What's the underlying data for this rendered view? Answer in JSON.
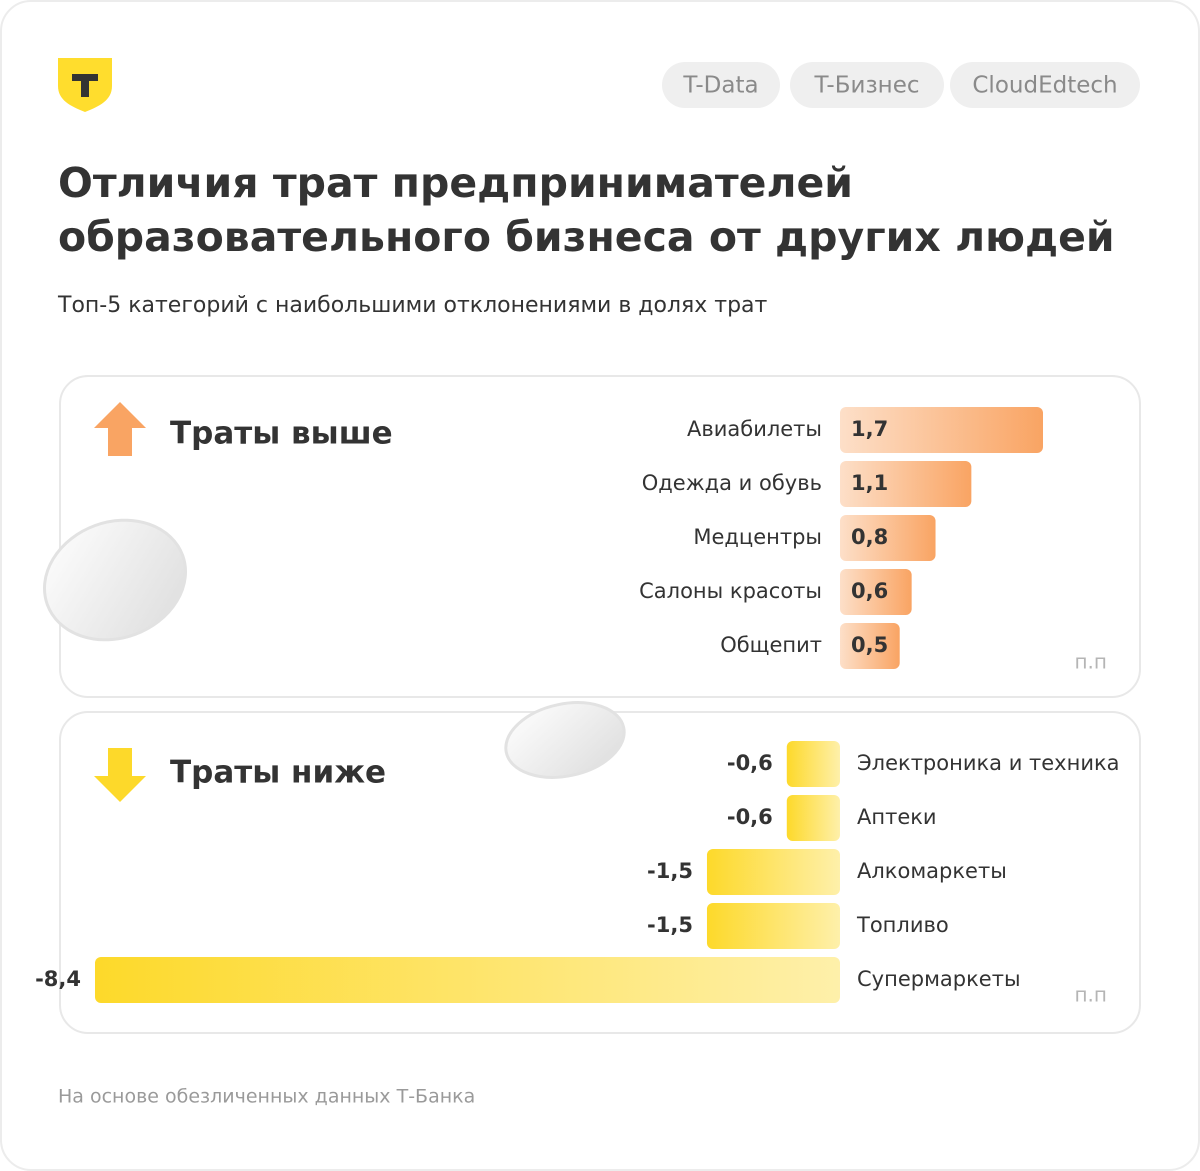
{
  "header": {
    "tags": [
      "T-Data",
      "T-Бизнес",
      "CloudEdtech"
    ],
    "title": [
      "Отличия трат предпринимателей",
      "образовательного бизнеса от других людей"
    ],
    "subtitle": "Топ-5 категорий с наибольшими отклонениями в долях трат"
  },
  "chart_data": [
    {
      "type": "bar",
      "title": "Траты выше",
      "categories": [
        "Авиабилеты",
        "Одежда и обувь",
        "Медцентры",
        "Салоны красоты",
        "Общепит"
      ],
      "values": [
        1.7,
        1.1,
        0.8,
        0.6,
        0.5
      ],
      "value_labels": [
        "1,7",
        "1,1",
        "0,8",
        "0,6",
        "0,5"
      ],
      "unit": "п.п",
      "color": "#f9a463"
    },
    {
      "type": "bar",
      "title": "Траты ниже",
      "categories": [
        "Электроника и техника",
        "Аптеки",
        "Алкомаркеты",
        "Топливо",
        "Супермаркеты"
      ],
      "values": [
        -0.6,
        -0.6,
        -1.5,
        -1.5,
        -8.4
      ],
      "value_labels": [
        "-0,6",
        "-0,6",
        "-1,5",
        "-1,5",
        "-8,4"
      ],
      "unit": "п.п",
      "color": "#fdd92a"
    }
  ],
  "footer": "На основе обезличенных данных Т-Банка"
}
